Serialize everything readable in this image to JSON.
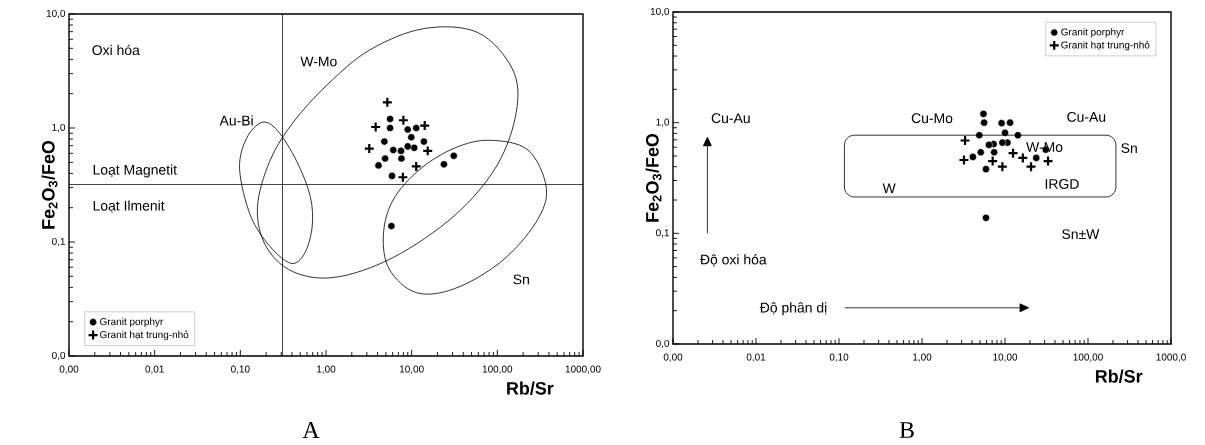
{
  "chart_data": [
    {
      "type": "scatter",
      "log": "xy",
      "grid": false,
      "legend": "bottom left",
      "xlabel": "Rb/Sr",
      "ylabel": "Fe$_{2}$O$_{3}$/FeO",
      "xlim": [
        0.001,
        1000
      ],
      "ylim": [
        0.01,
        10
      ],
      "xticks": [
        {
          "value": 0.001,
          "label": "0,00"
        },
        {
          "value": 0.01,
          "label": "0,01"
        },
        {
          "value": 0.1,
          "label": "0,10"
        },
        {
          "value": 1,
          "label": "1,00"
        },
        {
          "value": 10,
          "label": "10,00"
        },
        {
          "value": 100,
          "label": "100,00"
        },
        {
          "value": 1000,
          "label": "1000,00"
        }
      ],
      "yticks": [
        {
          "value": 0.01,
          "label": "0,0"
        },
        {
          "value": 0.1,
          "label": "0,1"
        },
        {
          "value": 1,
          "label": "1,0"
        },
        {
          "value": 10,
          "label": "10,0"
        }
      ],
      "series": [
        {
          "name": "Granit porphyr",
          "color": "#000000",
          "marker": "circle",
          "x": [
            5.6,
            5.6,
            4.8,
            9.0,
            11.3,
            9.9,
            13.9,
            10.7,
            7.5,
            6.1,
            4.9,
            7.6,
            4.1,
            5.9,
            23.8,
            31,
            5.8,
            9.0
          ],
          "values": [
            1.2,
            1.0,
            0.76,
            0.97,
            1.0,
            0.83,
            0.76,
            0.67,
            0.63,
            0.64,
            0.54,
            0.54,
            0.47,
            0.38,
            0.48,
            0.57,
            0.138,
            0.69
          ]
        },
        {
          "name": "Granit hạt trung-nhỏ",
          "color": "#000000",
          "marker": "cross",
          "x": [
            5.2,
            3.8,
            8.0,
            14.2,
            3.2,
            15.4,
            11.3,
            7.9
          ],
          "values": [
            1.68,
            1.02,
            1.17,
            1.05,
            0.66,
            0.63,
            0.46,
            0.37
          ]
        }
      ],
      "ref_lines": [
        {
          "axis": "x",
          "value": 0.31
        },
        {
          "axis": "y",
          "value": 0.32
        }
      ],
      "annotations": [
        "Oxi hóa",
        "W-Mo",
        "Au-Bi",
        "Loạt Magnetit",
        "Loạt Ilmenit",
        "Sn",
        "A"
      ]
    },
    {
      "type": "scatter",
      "log": "xy",
      "grid": false,
      "legend": "top right",
      "xlabel": "Rb/Sr",
      "ylabel": "Fe$_{2}$O$_{3}$/FeO",
      "xlim": [
        0.001,
        1000
      ],
      "ylim": [
        0.01,
        10
      ],
      "xticks": [
        {
          "value": 0.001,
          "label": "0,00"
        },
        {
          "value": 0.01,
          "label": "0,01"
        },
        {
          "value": 0.1,
          "label": "0,10"
        },
        {
          "value": 1,
          "label": "1,00"
        },
        {
          "value": 10,
          "label": "10,00"
        },
        {
          "value": 100,
          "label": "100,00"
        },
        {
          "value": 1000,
          "label": "1000,0"
        }
      ],
      "yticks": [
        {
          "value": 0.01,
          "label": "0,0"
        },
        {
          "value": 0.1,
          "label": "0,1"
        },
        {
          "value": 1,
          "label": "1,0"
        },
        {
          "value": 10,
          "label": "10,0"
        }
      ],
      "series": [
        {
          "name": "Granit porphyr",
          "color": "#000000",
          "marker": "circle",
          "x": [
            5.5,
            5.6,
            4.9,
            9.1,
            11.5,
            10.0,
            14.3,
            7.3,
            10.7,
            9.3,
            6.4,
            7.4,
            5.1,
            4.1,
            5.9,
            23.8,
            31,
            5.9
          ],
          "values": [
            1.2,
            1.0,
            0.77,
            0.99,
            1.0,
            0.81,
            0.77,
            0.64,
            0.66,
            0.66,
            0.63,
            0.54,
            0.54,
            0.49,
            0.38,
            0.48,
            0.57,
            0.138
          ]
        },
        {
          "name": "Granit hạt trung-nhỏ",
          "color": "#000000",
          "marker": "cross",
          "x": [
            3.3,
            3.2,
            7.1,
            9.3,
            12.5,
            16.4,
            20.6,
            33
          ],
          "values": [
            0.69,
            0.46,
            0.45,
            0.4,
            0.53,
            0.48,
            0.4,
            0.45
          ]
        }
      ],
      "annotations": [
        "Cu-Au",
        "Cu-Mo",
        "Cu-Au",
        "Sn",
        "W-Mo",
        "W",
        "IRGD",
        "Sn±W",
        "Độ oxi hóa",
        "Độ phân dị",
        "B"
      ]
    }
  ]
}
